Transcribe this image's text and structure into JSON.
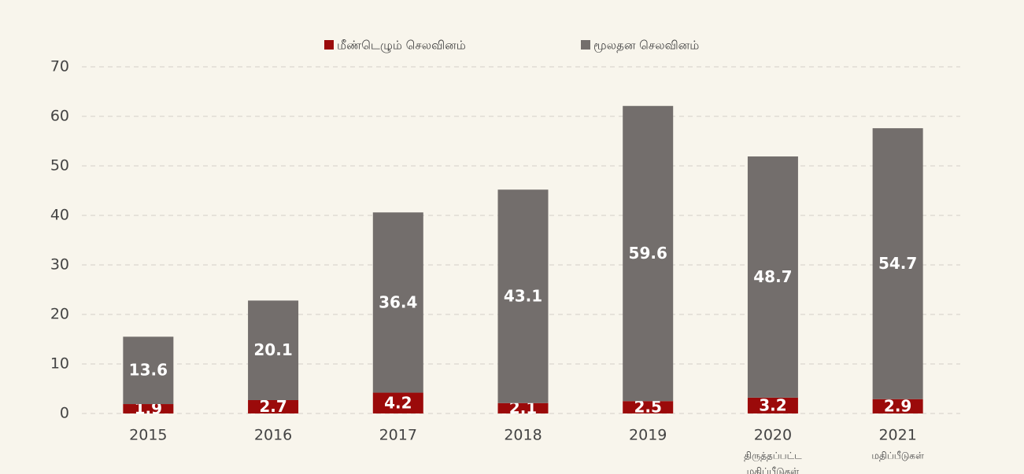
{
  "chart_data": {
    "type": "stacked_bar",
    "categories": [
      "2015",
      "2016",
      "2017",
      "2018",
      "2019",
      "2020",
      "2021"
    ],
    "category_notes": [
      null,
      null,
      null,
      null,
      null,
      [
        "திருத்தப்பட்ட",
        "மதிப்பீடுகள்"
      ],
      [
        "மதிப்பீடுகள்"
      ]
    ],
    "series": [
      {
        "name": "மீண்டெழும் செலவினம்",
        "color": "#9b0a0a",
        "values": [
          1.9,
          2.7,
          4.2,
          2.1,
          2.5,
          3.2,
          2.9
        ]
      },
      {
        "name": "மூலதன செலவினம்",
        "color": "#736e6c",
        "values": [
          13.6,
          20.1,
          36.4,
          43.1,
          59.6,
          48.7,
          54.7
        ]
      }
    ],
    "ylim": [
      0,
      70
    ],
    "yticks": [
      0,
      10,
      20,
      30,
      40,
      50,
      60,
      70
    ],
    "grid": true,
    "legend": "top"
  }
}
